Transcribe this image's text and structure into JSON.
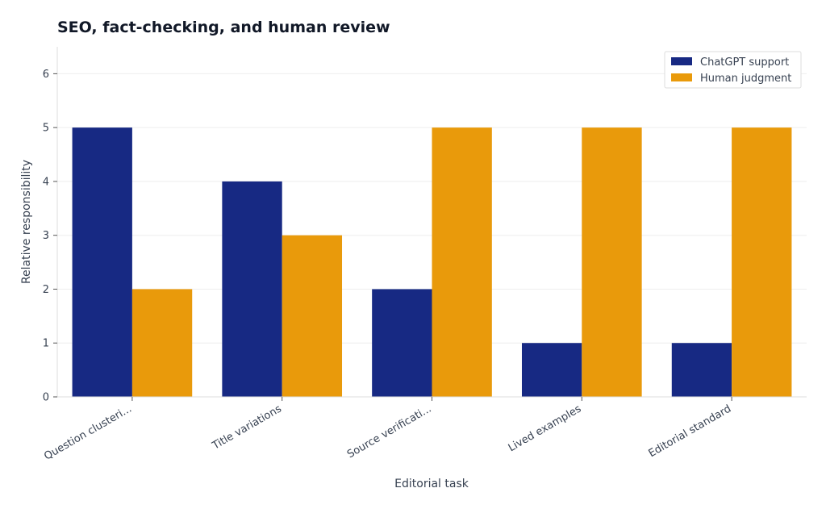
{
  "chart_data": {
    "type": "bar",
    "title": "SEO, fact-checking, and human review",
    "xlabel": "Editorial task",
    "ylabel": "Relative responsibility",
    "categories": [
      "Question clusteri...",
      "Title variations",
      "Source verificati...",
      "Lived examples",
      "Editorial standard"
    ],
    "series": [
      {
        "name": "ChatGPT support",
        "color": "#172983",
        "values": [
          5,
          4,
          2,
          1,
          1
        ]
      },
      {
        "name": "Human judgment",
        "color": "#E99A0B",
        "values": [
          2,
          3,
          5,
          5,
          5
        ]
      }
    ],
    "ylim": [
      0,
      6.5
    ],
    "yticks": [
      0,
      1,
      2,
      3,
      4,
      5,
      6
    ],
    "grid": true,
    "legend_position": "top-right"
  }
}
